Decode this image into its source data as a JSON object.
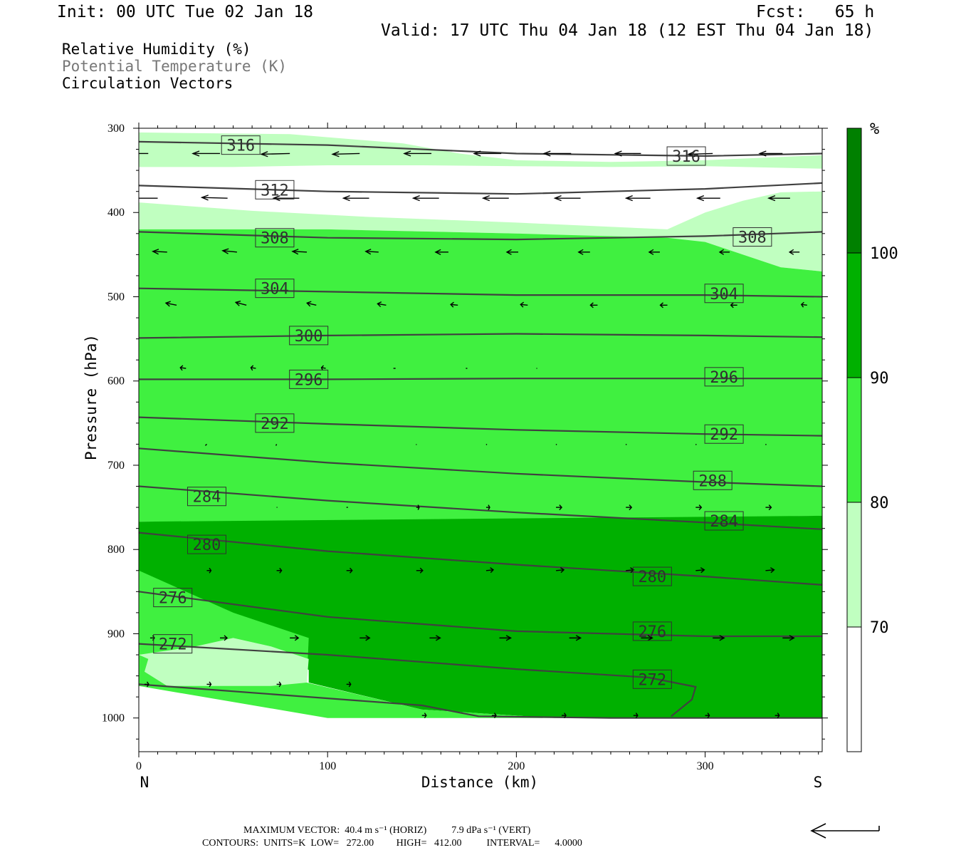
{
  "header": {
    "init": "Init: 00 UTC Tue 02 Jan 18",
    "fcst": "Fcst:   65 h",
    "valid": "Valid: 17 UTC Thu 04 Jan 18 (12 EST Thu 04 Jan 18)",
    "fields": [
      "Relative Humidity (%)",
      "Potential Temperature (K)",
      "Circulation Vectors"
    ]
  },
  "footer": {
    "line1": "MAXIMUM VECTOR:  40.4 m s⁻¹ (HORIZ)          7.9 dPa s⁻¹ (VERT)",
    "line2": "CONTOURS:  UNITS=K  LOW=   272.00         HIGH=   412.00          INTERVAL=      4.0000"
  },
  "chart_data": {
    "type": "cross-section",
    "xlabel": "Distance (km)",
    "ylabel": "Pressure (hPa)",
    "x_ticks": [
      0,
      100,
      200,
      300
    ],
    "y_ticks": [
      300,
      400,
      500,
      600,
      700,
      800,
      900,
      1000
    ],
    "xlim": [
      0,
      362
    ],
    "ylim": [
      300,
      1040
    ],
    "y_inverted": true,
    "end_labels": {
      "left": "N",
      "right": "S"
    },
    "colorbar": {
      "unit": "%",
      "levels": [
        70,
        80,
        90,
        100
      ],
      "colors": [
        "#ffffff",
        "#c0ffc0",
        "#40f040",
        "#00b000",
        "#008000"
      ]
    },
    "colors": {
      "line": "#404040",
      "label_bg": "#ffffff"
    },
    "rh_regions": [
      {
        "level": "70-80",
        "color": "#c0ffc0",
        "points": [
          [
            0,
            305
          ],
          [
            80,
            307
          ],
          [
            140,
            318
          ],
          [
            170,
            330
          ],
          [
            200,
            338
          ],
          [
            250,
            340
          ],
          [
            300,
            338
          ],
          [
            362,
            332
          ],
          [
            362,
            348
          ],
          [
            300,
            345
          ],
          [
            250,
            346
          ],
          [
            200,
            345
          ],
          [
            150,
            344
          ],
          [
            100,
            344
          ],
          [
            50,
            346
          ],
          [
            0,
            346
          ]
        ]
      },
      {
        "level": "70-80",
        "color": "#c0ffc0",
        "points": [
          [
            0,
            388
          ],
          [
            60,
            398
          ],
          [
            120,
            405
          ],
          [
            200,
            412
          ],
          [
            280,
            420
          ],
          [
            300,
            400
          ],
          [
            320,
            386
          ],
          [
            340,
            376
          ],
          [
            362,
            375
          ],
          [
            362,
            470
          ],
          [
            340,
            465
          ],
          [
            320,
            455
          ],
          [
            300,
            440
          ],
          [
            200,
            425
          ],
          [
            100,
            420
          ],
          [
            0,
            420
          ]
        ]
      },
      {
        "level": "80-90",
        "color": "#40f040",
        "points": [
          [
            0,
            420
          ],
          [
            100,
            420
          ],
          [
            200,
            425
          ],
          [
            280,
            430
          ],
          [
            300,
            435
          ],
          [
            320,
            450
          ],
          [
            340,
            465
          ],
          [
            362,
            470
          ],
          [
            362,
            760
          ],
          [
            300,
            762
          ],
          [
            250,
            763
          ],
          [
            200,
            765
          ],
          [
            150,
            766
          ],
          [
            100,
            767
          ],
          [
            0,
            767
          ]
        ]
      },
      {
        "level": "90-100",
        "color": "#00b000",
        "points": [
          [
            0,
            767
          ],
          [
            362,
            760
          ],
          [
            362,
            1000
          ],
          [
            220,
            1000
          ],
          [
            150,
            990
          ],
          [
            90,
            958
          ],
          [
            90,
            943
          ],
          [
            60,
            902
          ],
          [
            0,
            862
          ]
        ]
      },
      {
        "level": "80-90",
        "color": "#40f040",
        "points": [
          [
            0,
            825
          ],
          [
            50,
            875
          ],
          [
            90,
            905
          ],
          [
            89,
            958
          ],
          [
            150,
            990
          ],
          [
            220,
            1000
          ],
          [
            100,
            1000
          ],
          [
            0,
            962
          ]
        ]
      },
      {
        "level": "70-80",
        "color": "#c0ffc0",
        "points": [
          [
            0,
            925
          ],
          [
            30,
            915
          ],
          [
            50,
            905
          ],
          [
            70,
            915
          ],
          [
            90,
            930
          ],
          [
            89,
            958
          ],
          [
            70,
            962
          ],
          [
            40,
            962
          ],
          [
            15,
            962
          ],
          [
            3,
            945
          ],
          [
            5,
            930
          ]
        ]
      }
    ],
    "theta_contours": [
      {
        "value": 316,
        "points": [
          [
            0,
            316
          ],
          [
            100,
            320
          ],
          [
            200,
            330
          ],
          [
            300,
            333
          ],
          [
            362,
            330
          ]
        ],
        "labels": [
          [
            54,
            320
          ],
          [
            290,
            333
          ]
        ]
      },
      {
        "value": 312,
        "points": [
          [
            0,
            368
          ],
          [
            100,
            375
          ],
          [
            200,
            378
          ],
          [
            300,
            372
          ],
          [
            362,
            365
          ]
        ],
        "labels": [
          [
            72,
            373
          ]
        ]
      },
      {
        "value": 308,
        "points": [
          [
            0,
            423
          ],
          [
            100,
            430
          ],
          [
            200,
            432
          ],
          [
            300,
            428
          ],
          [
            362,
            423
          ]
        ],
        "labels": [
          [
            72,
            430
          ],
          [
            325,
            429
          ]
        ]
      },
      {
        "value": 304,
        "points": [
          [
            0,
            490
          ],
          [
            100,
            494
          ],
          [
            200,
            498
          ],
          [
            300,
            498
          ],
          [
            362,
            500
          ]
        ],
        "labels": [
          [
            72,
            490
          ],
          [
            310,
            496
          ]
        ]
      },
      {
        "value": 300,
        "points": [
          [
            0,
            549
          ],
          [
            100,
            546
          ],
          [
            200,
            544
          ],
          [
            300,
            546
          ],
          [
            362,
            548
          ]
        ],
        "labels": [
          [
            90,
            546
          ]
        ]
      },
      {
        "value": 296,
        "points": [
          [
            0,
            598
          ],
          [
            100,
            598
          ],
          [
            200,
            597
          ],
          [
            300,
            597
          ],
          [
            362,
            597
          ]
        ],
        "labels": [
          [
            90,
            598
          ],
          [
            310,
            595
          ]
        ]
      },
      {
        "value": 292,
        "points": [
          [
            0,
            643
          ],
          [
            100,
            651
          ],
          [
            200,
            658
          ],
          [
            300,
            663
          ],
          [
            362,
            665
          ]
        ],
        "labels": [
          [
            72,
            650
          ],
          [
            310,
            663
          ]
        ]
      },
      {
        "value": 288,
        "points": [
          [
            0,
            680
          ],
          [
            100,
            697
          ],
          [
            200,
            710
          ],
          [
            300,
            720
          ],
          [
            362,
            725
          ]
        ],
        "labels": [
          [
            304,
            718
          ]
        ]
      },
      {
        "value": 284,
        "points": [
          [
            0,
            725
          ],
          [
            100,
            742
          ],
          [
            200,
            756
          ],
          [
            300,
            768
          ],
          [
            362,
            776
          ]
        ],
        "labels": [
          [
            36,
            737
          ],
          [
            310,
            766
          ]
        ]
      },
      {
        "value": 280,
        "points": [
          [
            0,
            780
          ],
          [
            100,
            802
          ],
          [
            200,
            818
          ],
          [
            300,
            832
          ],
          [
            362,
            842
          ]
        ],
        "labels": [
          [
            36,
            794
          ],
          [
            272,
            832
          ]
        ]
      },
      {
        "value": 276,
        "points": [
          [
            0,
            850
          ],
          [
            100,
            880
          ],
          [
            200,
            897
          ],
          [
            300,
            903
          ],
          [
            362,
            903
          ]
        ],
        "labels": [
          [
            18,
            857
          ],
          [
            272,
            897
          ]
        ]
      },
      {
        "value": 272,
        "points": [
          [
            0,
            912
          ],
          [
            100,
            925
          ],
          [
            200,
            942
          ],
          [
            270,
            952
          ],
          [
            295,
            963
          ],
          [
            293,
            978
          ],
          [
            282,
            998
          ]
        ],
        "labels": [
          [
            18,
            912
          ],
          [
            272,
            954
          ]
        ]
      },
      {
        "value": "ground",
        "points": [
          [
            0,
            960
          ],
          [
            150,
            985
          ],
          [
            180,
            998
          ],
          [
            250,
            1000
          ],
          [
            362,
            1000
          ]
        ],
        "labels": []
      }
    ],
    "vector_rows": [
      {
        "p": 330,
        "x": [
          5,
          43,
          80,
          117,
          155,
          192,
          229,
          266,
          304,
          341
        ],
        "dx": [
          -40,
          -38,
          -40,
          -38,
          -38,
          -38,
          -38,
          -36,
          -34,
          -32
        ],
        "dy": [
          0,
          0,
          1,
          1,
          0,
          0,
          0,
          0,
          1,
          0
        ]
      },
      {
        "p": 383,
        "x": [
          10,
          47,
          85,
          122,
          159,
          196,
          234,
          271,
          308,
          345
        ],
        "dx": [
          -36,
          -36,
          -36,
          -36,
          -36,
          -36,
          -36,
          -34,
          -32,
          -30
        ],
        "dy": [
          0,
          -1,
          0,
          0,
          0,
          0,
          0,
          0,
          0,
          0
        ]
      },
      {
        "p": 447,
        "x": [
          15,
          52,
          89,
          127,
          164,
          201,
          239,
          276,
          313,
          350
        ],
        "dx": [
          -20,
          -20,
          -20,
          -18,
          -18,
          -16,
          -16,
          -15,
          -14,
          -14
        ],
        "dy": [
          -1,
          -2,
          -1,
          -1,
          0,
          0,
          0,
          0,
          0,
          0
        ]
      },
      {
        "p": 510,
        "x": [
          20,
          57,
          94,
          131,
          169,
          206,
          243,
          280,
          317,
          354
        ],
        "dx": [
          -15,
          -15,
          -13,
          -12,
          -10,
          -10,
          -10,
          -10,
          -9,
          -8
        ],
        "dy": [
          -3,
          -4,
          -3,
          -2,
          -1,
          -1,
          0,
          0,
          0,
          -1
        ]
      },
      {
        "p": 585,
        "x": [
          25,
          62,
          99,
          136,
          174,
          211,
          248,
          285,
          322,
          359
        ],
        "dx": [
          -8,
          -7,
          -6,
          -3,
          -2,
          -1,
          0,
          0,
          0,
          0
        ],
        "dy": [
          -1,
          -1,
          -1,
          0,
          0,
          0,
          0,
          0,
          0,
          0
        ]
      },
      {
        "p": 675,
        "x": [
          36,
          73,
          110,
          147,
          184,
          221,
          258,
          295,
          332
        ],
        "dx": [
          -2,
          -1,
          0,
          0,
          1,
          1,
          1,
          1,
          1
        ],
        "dy": [
          2,
          2,
          0,
          1,
          1,
          1,
          1,
          1,
          1
        ]
      },
      {
        "p": 750,
        "x": [
          36,
          73,
          110,
          147,
          184,
          221,
          258,
          295,
          332
        ],
        "dx": [
          0,
          1,
          2,
          4,
          5,
          8,
          8,
          8,
          8
        ],
        "dy": [
          0,
          0,
          0,
          0,
          0,
          0,
          0,
          0,
          0
        ]
      },
      {
        "p": 825,
        "x": [
          36,
          73,
          110,
          147,
          184,
          221,
          258,
          295,
          332
        ],
        "dx": [
          6,
          7,
          8,
          9,
          10,
          11,
          11,
          12,
          12
        ],
        "dy": [
          0,
          0,
          0,
          0,
          -1,
          -1,
          -1,
          -1,
          -1
        ]
      },
      {
        "p": 905,
        "x": [
          6,
          43,
          80,
          117,
          154,
          191,
          228,
          266,
          304,
          341
        ],
        "dx": [
          6,
          10,
          12,
          14,
          15,
          16,
          16,
          16,
          16,
          16
        ],
        "dy": [
          0,
          0,
          0,
          0,
          0,
          0,
          0,
          0,
          0,
          0
        ]
      },
      {
        "p": 960,
        "x": [
          3,
          36,
          73,
          110
        ],
        "dx": [
          6,
          6,
          6,
          6
        ],
        "dy": [
          0,
          0,
          0,
          0
        ]
      },
      {
        "p": 997,
        "x": [
          150,
          187,
          224,
          262,
          300,
          337
        ],
        "dx": [
          6,
          6,
          6,
          6,
          6,
          6
        ],
        "dy": [
          0,
          0,
          0,
          0,
          0,
          0
        ]
      }
    ]
  }
}
